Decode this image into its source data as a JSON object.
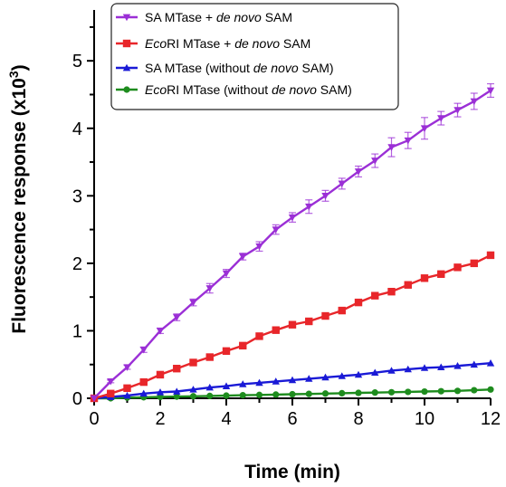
{
  "chart_data": {
    "type": "line",
    "xlabel": "Time (min)",
    "ylabel": "Fluorescence response (x10",
    "ylabel_sup": "3",
    "ylabel_end": ")",
    "xlim": [
      0,
      12
    ],
    "ylim": [
      0,
      5.7
    ],
    "xticks": [
      0,
      2,
      4,
      6,
      8,
      10,
      12
    ],
    "yticks": [
      0,
      1,
      2,
      3,
      4,
      5
    ],
    "grid": false,
    "legend_position": "top-left",
    "x": [
      0,
      0.5,
      1,
      1.5,
      2,
      2.5,
      3,
      3.5,
      4,
      4.5,
      5,
      5.5,
      6,
      6.5,
      7,
      7.5,
      8,
      8.5,
      9,
      9.5,
      10,
      10.5,
      11,
      11.5,
      12
    ],
    "series": [
      {
        "name": "SA MTase + de novo SAM",
        "legend_parts": [
          {
            "t": "SA MTase + ",
            "i": false
          },
          {
            "t": "de novo",
            "i": true
          },
          {
            "t": " SAM",
            "i": false
          }
        ],
        "color": "#9b2fd6",
        "marker": "triangle-down",
        "values": [
          0,
          0.25,
          0.46,
          0.72,
          1.0,
          1.2,
          1.42,
          1.63,
          1.85,
          2.1,
          2.25,
          2.5,
          2.68,
          2.84,
          3.0,
          3.18,
          3.36,
          3.52,
          3.72,
          3.82,
          4.0,
          4.15,
          4.27,
          4.4,
          4.56
        ],
        "errors": [
          0,
          0.02,
          0.03,
          0.04,
          0.04,
          0.05,
          0.05,
          0.07,
          0.06,
          0.05,
          0.07,
          0.07,
          0.07,
          0.1,
          0.08,
          0.08,
          0.08,
          0.1,
          0.14,
          0.12,
          0.16,
          0.1,
          0.1,
          0.12,
          0.1
        ]
      },
      {
        "name": "EcoRI MTase + de novo SAM",
        "legend_parts": [
          {
            "t": "Eco",
            "i": true
          },
          {
            "t": "RI MTase + ",
            "i": false
          },
          {
            "t": "de novo",
            "i": true
          },
          {
            "t": " SAM",
            "i": false
          }
        ],
        "color": "#e8262a",
        "marker": "square",
        "values": [
          0,
          0.07,
          0.15,
          0.24,
          0.35,
          0.44,
          0.53,
          0.61,
          0.7,
          0.78,
          0.92,
          1.01,
          1.09,
          1.14,
          1.22,
          1.3,
          1.42,
          1.52,
          1.58,
          1.68,
          1.78,
          1.84,
          1.94,
          2.0,
          2.12
        ],
        "errors": [
          0,
          0.02,
          0.02,
          0.02,
          0.02,
          0.02,
          0.02,
          0.02,
          0.02,
          0.02,
          0.02,
          0.02,
          0.02,
          0.02,
          0.02,
          0.02,
          0.02,
          0.02,
          0.02,
          0.02,
          0.02,
          0.02,
          0.02,
          0.02,
          0.03
        ]
      },
      {
        "name": "SA MTase (without de novo SAM)",
        "legend_parts": [
          {
            "t": "SA MTase (without ",
            "i": false
          },
          {
            "t": "de novo",
            "i": true
          },
          {
            "t": " SAM)",
            "i": false
          }
        ],
        "color": "#1a1ad6",
        "marker": "triangle-up",
        "values": [
          0,
          0.02,
          0.04,
          0.07,
          0.09,
          0.1,
          0.13,
          0.16,
          0.18,
          0.21,
          0.23,
          0.25,
          0.27,
          0.29,
          0.31,
          0.33,
          0.35,
          0.38,
          0.41,
          0.43,
          0.45,
          0.46,
          0.48,
          0.5,
          0.52
        ],
        "errors": []
      },
      {
        "name": "EcoRI MTase (without de novo SAM)",
        "legend_parts": [
          {
            "t": "Eco",
            "i": true
          },
          {
            "t": "RI MTase (without ",
            "i": false
          },
          {
            "t": "de novo",
            "i": true
          },
          {
            "t": " SAM)",
            "i": false
          }
        ],
        "color": "#1e8c1e",
        "marker": "circle",
        "values": [
          0,
          0.0,
          0.01,
          0.015,
          0.02,
          0.025,
          0.03,
          0.035,
          0.04,
          0.045,
          0.05,
          0.055,
          0.06,
          0.065,
          0.07,
          0.075,
          0.08,
          0.085,
          0.09,
          0.095,
          0.1,
          0.105,
          0.11,
          0.12,
          0.13
        ],
        "errors": []
      }
    ]
  }
}
